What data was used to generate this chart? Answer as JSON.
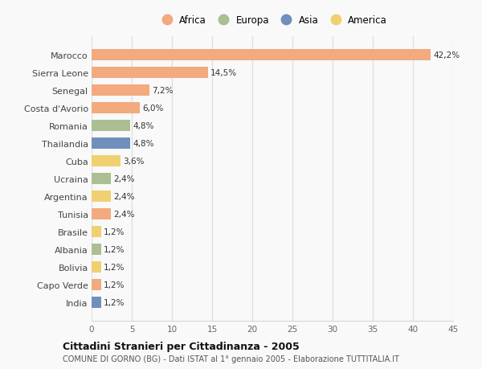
{
  "countries": [
    "Marocco",
    "Sierra Leone",
    "Senegal",
    "Costa d'Avorio",
    "Romania",
    "Thailandia",
    "Cuba",
    "Ucraina",
    "Argentina",
    "Tunisia",
    "Brasile",
    "Albania",
    "Bolivia",
    "Capo Verde",
    "India"
  ],
  "values": [
    42.2,
    14.5,
    7.2,
    6.0,
    4.8,
    4.8,
    3.6,
    2.4,
    2.4,
    2.4,
    1.2,
    1.2,
    1.2,
    1.2,
    1.2
  ],
  "labels": [
    "42,2%",
    "14,5%",
    "7,2%",
    "6,0%",
    "4,8%",
    "4,8%",
    "3,6%",
    "2,4%",
    "2,4%",
    "2,4%",
    "1,2%",
    "1,2%",
    "1,2%",
    "1,2%",
    "1,2%"
  ],
  "continents": [
    "Africa",
    "Africa",
    "Africa",
    "Africa",
    "Europa",
    "Asia",
    "America",
    "Europa",
    "America",
    "Africa",
    "America",
    "Europa",
    "America",
    "Africa",
    "Asia"
  ],
  "continent_colors": {
    "Africa": "#F2AA7E",
    "Europa": "#ABBE94",
    "Asia": "#7090BB",
    "America": "#F0D070"
  },
  "legend_order": [
    "Africa",
    "Europa",
    "Asia",
    "America"
  ],
  "title": "Cittadini Stranieri per Cittadinanza - 2005",
  "subtitle": "COMUNE DI GORNO (BG) - Dati ISTAT al 1° gennaio 2005 - Elaborazione TUTTITALIA.IT",
  "xlim": [
    0,
    45
  ],
  "xticks": [
    0,
    5,
    10,
    15,
    20,
    25,
    30,
    35,
    40,
    45
  ],
  "background_color": "#f9f9f9",
  "grid_color": "#e8e8e8",
  "bar_height": 0.65
}
